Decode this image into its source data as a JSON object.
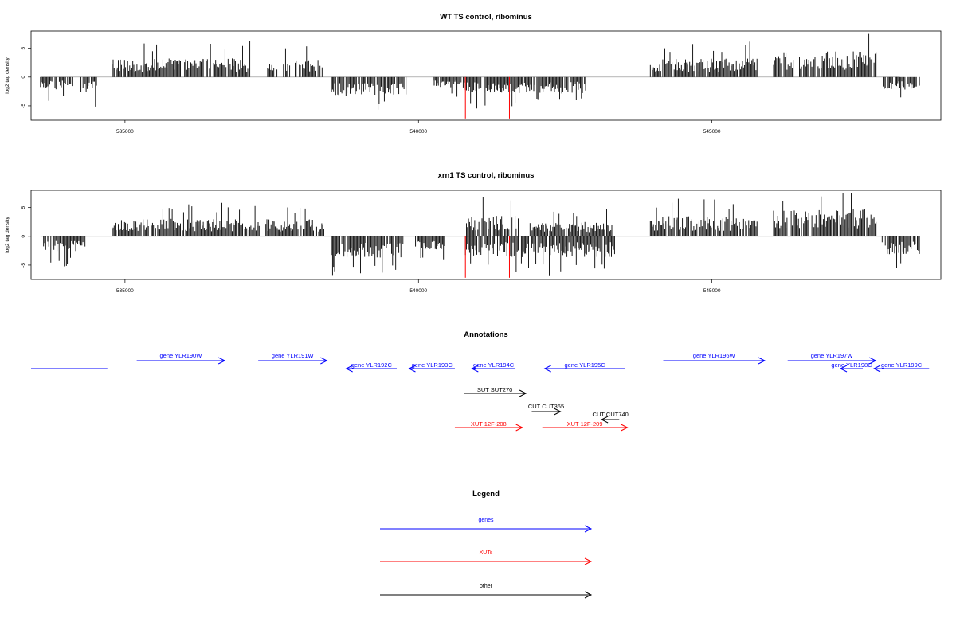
{
  "chart_data": [
    {
      "type": "bar",
      "title": "WT TS control, ribominus",
      "ylabel": "log2 tag density",
      "xlim": [
        533400,
        548900
      ],
      "ylim": [
        -7.5,
        8
      ],
      "x_ticks": [
        535000,
        540000,
        545000
      ],
      "y_ticks": [
        5,
        0,
        -5
      ],
      "y_tick_labels": [
        "5",
        "0",
        "-5"
      ],
      "segments": [
        {
          "start": 533560,
          "end": 533840,
          "mean": -1.8
        },
        {
          "start": 533880,
          "end": 534120,
          "mean": -1.5
        },
        {
          "start": 534250,
          "end": 534520,
          "mean": -2.2
        },
        {
          "start": 534780,
          "end": 537130,
          "mean": 2.6
        },
        {
          "start": 537430,
          "end": 537600,
          "mean": 1.8
        },
        {
          "start": 537700,
          "end": 537830,
          "mean": 2.2
        },
        {
          "start": 537900,
          "end": 538400,
          "mean": 2.4
        },
        {
          "start": 538500,
          "end": 539800,
          "mean": -2.6
        },
        {
          "start": 540250,
          "end": 540800,
          "mean": -1.6
        },
        {
          "start": 540800,
          "end": 542850,
          "mean": -2.3
        },
        {
          "start": 543950,
          "end": 545800,
          "mean": 2.6
        },
        {
          "start": 546050,
          "end": 547800,
          "mean": 3.6
        },
        {
          "start": 547900,
          "end": 548550,
          "mean": -1.8
        }
      ],
      "highlight": {
        "x": [
          540800,
          541550
        ],
        "y": [
          -7.2,
          -7.2
        ],
        "color": "#ff0000"
      }
    },
    {
      "type": "bar",
      "title": "xrn1 TS control, ribominus",
      "ylabel": "log2 tag density",
      "xlim": [
        533400,
        548900
      ],
      "ylim": [
        -7.5,
        8
      ],
      "x_ticks": [
        535000,
        540000,
        545000
      ],
      "y_ticks": [
        5,
        0,
        -5
      ],
      "y_tick_labels": [
        "5",
        "0",
        "-5"
      ],
      "segments": [
        {
          "start": 533560,
          "end": 534320,
          "mean": -2.2
        },
        {
          "start": 534780,
          "end": 537300,
          "mean": 2.5
        },
        {
          "start": 537400,
          "end": 538400,
          "mean": 2.4
        },
        {
          "start": 538500,
          "end": 539750,
          "mean": -3.0
        },
        {
          "start": 539950,
          "end": 540450,
          "mean": -1.8
        },
        {
          "start": 540800,
          "end": 541700,
          "mean": 2.9
        },
        {
          "start": 540800,
          "end": 543350,
          "mean": -2.9
        },
        {
          "start": 541900,
          "end": 543300,
          "mean": 2.0
        },
        {
          "start": 543950,
          "end": 545800,
          "mean": 2.8
        },
        {
          "start": 546050,
          "end": 547800,
          "mean": 3.8
        },
        {
          "start": 547900,
          "end": 548550,
          "mean": -2.6
        }
      ],
      "highlight": {
        "x": [
          540800,
          541550
        ],
        "y": [
          -7.2,
          -7.2
        ],
        "color": "#ff0000"
      }
    }
  ],
  "colors": {
    "gene": "#0000ff",
    "xut": "#ff0000",
    "other": "#000000"
  },
  "annotations": {
    "title": "Annotations",
    "features": [
      {
        "label": "",
        "start": 533400,
        "end": 534700,
        "strand": "none",
        "row": 2,
        "kind": "gene"
      },
      {
        "label": "gene YLR190W",
        "start": 535200,
        "end": 536700,
        "strand": "+",
        "row": 1,
        "kind": "gene"
      },
      {
        "label": "gene YLR191W",
        "start": 537270,
        "end": 538440,
        "strand": "+",
        "row": 1,
        "kind": "gene"
      },
      {
        "label": "gene YLR192C",
        "start": 538770,
        "end": 539630,
        "strand": "-",
        "row": 2,
        "kind": "gene"
      },
      {
        "label": "gene YLR193C",
        "start": 539840,
        "end": 540620,
        "strand": "-",
        "row": 2,
        "kind": "gene"
      },
      {
        "label": "gene YLR194C",
        "start": 540910,
        "end": 541650,
        "strand": "-",
        "row": 2,
        "kind": "gene"
      },
      {
        "label": "gene YLR195C",
        "start": 542150,
        "end": 543520,
        "strand": "-",
        "row": 2,
        "kind": "gene"
      },
      {
        "label": "gene YLR196W",
        "start": 544170,
        "end": 545900,
        "strand": "+",
        "row": 1,
        "kind": "gene"
      },
      {
        "label": "gene YLR197W",
        "start": 546290,
        "end": 547790,
        "strand": "+",
        "row": 1,
        "kind": "gene"
      },
      {
        "label": "gene YLR198C",
        "start": 547190,
        "end": 547570,
        "strand": "-",
        "row": 2,
        "kind": "gene"
      },
      {
        "label": "gene YLR199C",
        "start": 547760,
        "end": 548700,
        "strand": "-",
        "row": 2,
        "kind": "gene"
      },
      {
        "label": "SUT SUT270",
        "start": 540770,
        "end": 541830,
        "strand": "+",
        "row": 3,
        "kind": "other"
      },
      {
        "label": "CUT CUT365",
        "start": 541930,
        "end": 542420,
        "strand": "+",
        "row": 4,
        "kind": "other"
      },
      {
        "label": "CUT CUT740",
        "start": 543120,
        "end": 543420,
        "strand": "-",
        "row": 5,
        "kind": "other"
      },
      {
        "label": "XUT 12F-208",
        "start": 540620,
        "end": 541770,
        "strand": "+",
        "row": 6,
        "kind": "xut"
      },
      {
        "label": "XUT 12F-209",
        "start": 542110,
        "end": 543560,
        "strand": "+",
        "row": 6,
        "kind": "xut"
      }
    ]
  },
  "legend": {
    "title": "Legend",
    "items": [
      {
        "label": "genes",
        "kind": "gene"
      },
      {
        "label": "XUTs",
        "kind": "xut"
      },
      {
        "label": "other",
        "kind": "other"
      }
    ]
  }
}
